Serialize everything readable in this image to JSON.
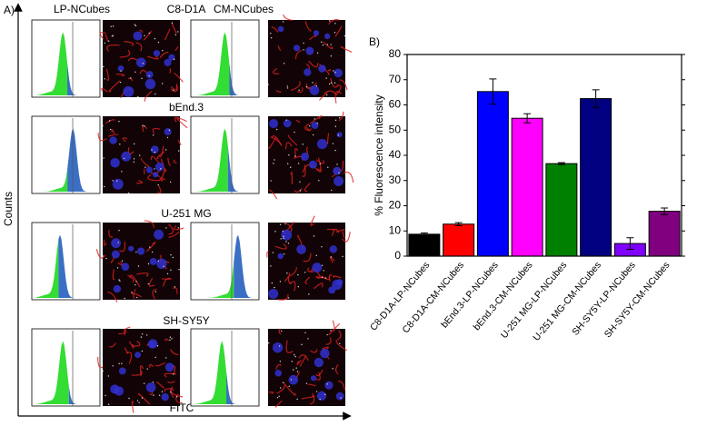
{
  "panel_a": {
    "label": "A)",
    "columns": [
      "LP-NCubes",
      "CM-NCubes"
    ],
    "rows": [
      "C8-D1A",
      "bEnd.3",
      "U-251 MG",
      "SH-SY5Y"
    ],
    "y_axis_label": "Counts",
    "x_axis_label": "FITC"
  },
  "chart_data": {
    "type": "bar",
    "panel_label": "B)",
    "ylabel": "% Fluorescence intensity",
    "categories": [
      "C8-D1A-LP-NCubes",
      "C8-D1A-CM-NCubes",
      "bEnd.3-LP-NCubes",
      "bEnd.3-CM-NCubes",
      "U-251 MG-LP-NCubes",
      "U-251 MG-CM-NCubes",
      "SH-SY5Y-LP-NCubes",
      "SH-SY5Y-CM-NCubes"
    ],
    "values": [
      8.7,
      12.7,
      65.3,
      54.7,
      36.7,
      62.5,
      5.0,
      17.8
    ],
    "errors": [
      0.5,
      0.6,
      5.0,
      1.8,
      0.4,
      3.5,
      2.3,
      1.3
    ],
    "colors": [
      "#000000",
      "#ff0000",
      "#0000ff",
      "#ff00ff",
      "#008000",
      "#000080",
      "#8000ff",
      "#800080"
    ],
    "ylim": [
      0,
      80
    ],
    "yticks": [
      0,
      10,
      20,
      30,
      40,
      50,
      60,
      70,
      80
    ]
  }
}
